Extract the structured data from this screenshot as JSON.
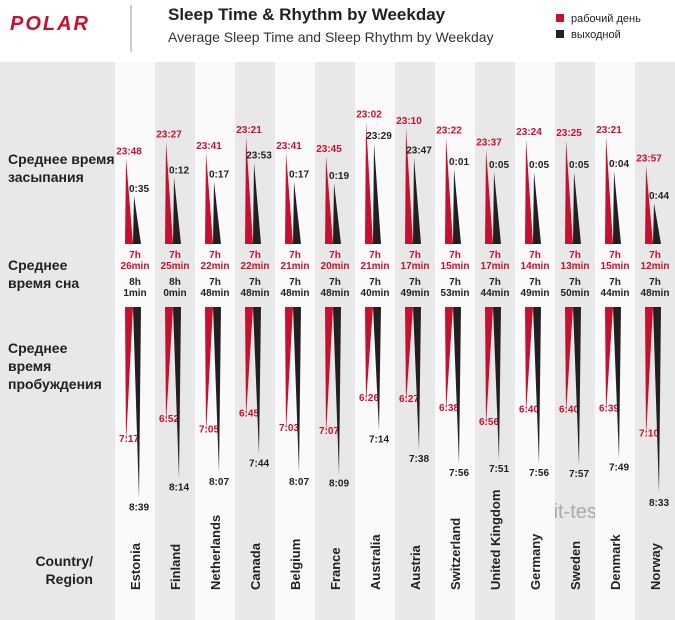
{
  "chart_data": {
    "type": "spike",
    "brand": "POLAR",
    "title": "Sleep Time & Rhythm by Weekday",
    "subtitle": "Average Sleep Time and Sleep Rhythm by Weekday",
    "row_labels": {
      "bedtime": "Среднее время\nзасыпания",
      "sleep": "Среднее\nвремя сна",
      "wake": "Среднее\nвремя\nпробуждения",
      "country": "Country/\nRegion"
    },
    "watermark": "fit-test.ru",
    "categories": [
      "Estonia",
      "Finland",
      "Netherlands",
      "Canada",
      "Belgium",
      "France",
      "Australia",
      "Austria",
      "Switzerland",
      "United Kingdom",
      "Germany",
      "Sweden",
      "Denmark",
      "Norway"
    ],
    "series": [
      {
        "name": "рабочий день",
        "color": "#c8102e",
        "bedtime": [
          "23:48",
          "23:27",
          "23:41",
          "23:21",
          "23:41",
          "23:45",
          "23:02",
          "23:10",
          "23:22",
          "23:37",
          "23:24",
          "23:25",
          "23:21",
          "23:57"
        ],
        "sleep": [
          "7h\n26min",
          "7h\n25min",
          "7h\n22min",
          "7h\n22min",
          "7h\n21min",
          "7h\n20min",
          "7h\n21min",
          "7h\n17min",
          "7h\n15min",
          "7h\n17min",
          "7h\n14min",
          "7h\n13min",
          "7h\n15min",
          "7h\n12min"
        ],
        "wake": [
          "7:17",
          "6:52",
          "7:05",
          "6:45",
          "7:03",
          "7:07",
          "6:26",
          "6:27",
          "6:38",
          "6:56",
          "6:40",
          "6:40",
          "6:39",
          "7:10"
        ]
      },
      {
        "name": "выходной",
        "color": "#231f20",
        "bedtime": [
          "0:35",
          "0:12",
          "0:17",
          "23:53",
          "0:17",
          "0:19",
          "23:29",
          "23:47",
          "0:01",
          "0:05",
          "0:05",
          "0:05",
          "0:04",
          "0:44"
        ],
        "sleep": [
          "8h\n1min",
          "8h\n0min",
          "7h\n48min",
          "7h\n48min",
          "7h\n48min",
          "7h\n48min",
          "7h\n40min",
          "7h\n49min",
          "7h\n53min",
          "7h\n44min",
          "7h\n49min",
          "7h\n50min",
          "7h\n44min",
          "7h\n48min"
        ],
        "wake": [
          "8:39",
          "8:14",
          "8:07",
          "7:44",
          "8:07",
          "8:09",
          "7:14",
          "7:38",
          "7:56",
          "7:51",
          "7:56",
          "7:57",
          "7:49",
          "8:33"
        ]
      }
    ]
  }
}
